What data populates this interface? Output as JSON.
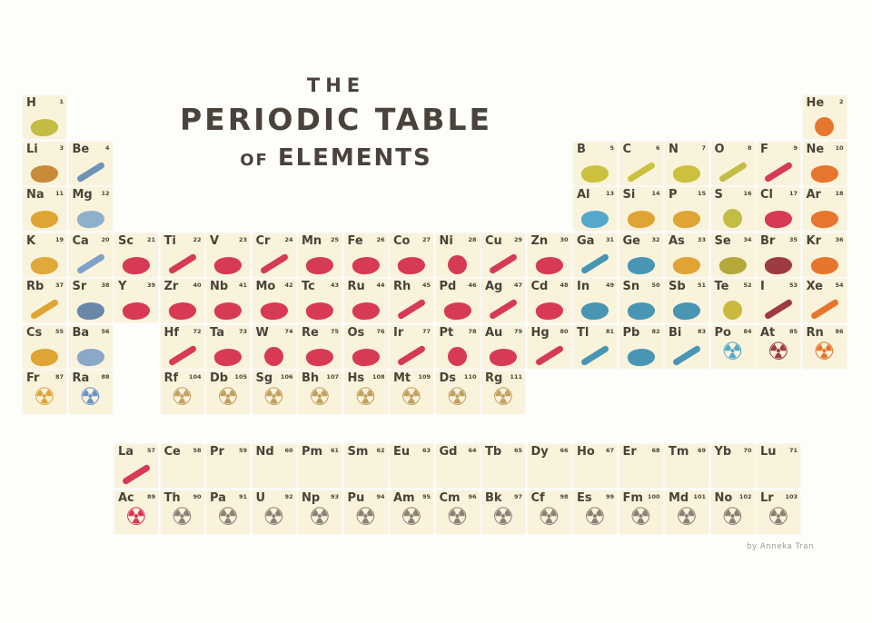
{
  "title": {
    "line1": "THE",
    "line2": "PERIODIC TABLE",
    "line3_of": "OF",
    "line3": "ELEMENTS"
  },
  "credit": "by Anneka Tran",
  "icons": {
    "radiation_glyph": "☢"
  },
  "palette": {
    "page_bg": "#fdfdf9",
    "cell_bg": "#faf3dc",
    "ink": "#4a433b",
    "yellow": "#c3bc45",
    "gold": "#dfa433",
    "slate_blue": "#6e93b5",
    "teal_blue": "#4896b4",
    "crimson": "#d63a55",
    "dark_red": "#9e3a42",
    "orange": "#e6762e",
    "tan": "#c2a05f",
    "gray": "#8d8076"
  },
  "elements": {
    "periods": [
      [
        {
          "symbol": "H",
          "number": 1,
          "col": 1,
          "icon": "blimp",
          "shape": "blob",
          "color": "#c3bc45"
        },
        {
          "symbol": "He",
          "number": 2,
          "col": 18,
          "icon": "balloon",
          "shape": "round",
          "color": "#e6762e"
        }
      ],
      [
        {
          "symbol": "Li",
          "number": 3,
          "col": 1,
          "icon": "radio",
          "shape": "blob",
          "color": "#c98b3a"
        },
        {
          "symbol": "Be",
          "number": 4,
          "col": 2,
          "icon": "satellite",
          "shape": "rod",
          "color": "#6e93b5"
        },
        {
          "symbol": "B",
          "number": 5,
          "col": 13,
          "icon": "measuring-cup",
          "shape": "blob",
          "color": "#ccc13f"
        },
        {
          "symbol": "C",
          "number": 6,
          "col": 14,
          "icon": "pencil",
          "shape": "rod",
          "color": "#ccc13f"
        },
        {
          "symbol": "N",
          "number": 7,
          "col": 15,
          "icon": "dynamite",
          "shape": "blob",
          "color": "#ccc13f"
        },
        {
          "symbol": "O",
          "number": 8,
          "col": 16,
          "icon": "oxygen-tank",
          "shape": "rod",
          "color": "#c3bc45"
        },
        {
          "symbol": "F",
          "number": 9,
          "col": 17,
          "icon": "toothbrush",
          "shape": "rod",
          "color": "#d63a55"
        },
        {
          "symbol": "Ne",
          "number": 10,
          "col": 18,
          "icon": "neon-sign",
          "shape": "blob",
          "color": "#e6762e"
        }
      ],
      [
        {
          "symbol": "Na",
          "number": 11,
          "col": 1,
          "icon": "salt-shaker",
          "shape": "blob",
          "color": "#dfa433"
        },
        {
          "symbol": "Mg",
          "number": 12,
          "col": 2,
          "icon": "leaves",
          "shape": "blob",
          "color": "#8fb0cc"
        },
        {
          "symbol": "Al",
          "number": 13,
          "col": 13,
          "icon": "soda-can",
          "shape": "blob",
          "color": "#54a8cc"
        },
        {
          "symbol": "Si",
          "number": 14,
          "col": 14,
          "icon": "microchip",
          "shape": "blob",
          "color": "#dfa433"
        },
        {
          "symbol": "P",
          "number": 15,
          "col": 15,
          "icon": "matchbox",
          "shape": "blob",
          "color": "#dfa433"
        },
        {
          "symbol": "S",
          "number": 16,
          "col": 16,
          "icon": "tire",
          "shape": "round",
          "color": "#c3bc45"
        },
        {
          "symbol": "Cl",
          "number": 17,
          "col": 17,
          "icon": "spray-bottle",
          "shape": "blob",
          "color": "#d63a55"
        },
        {
          "symbol": "Ar",
          "number": 18,
          "col": 18,
          "icon": "light-bulb",
          "shape": "blob",
          "color": "#e6762e"
        }
      ],
      [
        {
          "symbol": "K",
          "number": 19,
          "col": 1,
          "icon": "banana",
          "shape": "blob",
          "color": "#e0a93c"
        },
        {
          "symbol": "Ca",
          "number": 20,
          "col": 2,
          "icon": "bone",
          "shape": "rod",
          "color": "#7fa3c8"
        },
        {
          "symbol": "Sc",
          "number": 21,
          "col": 3,
          "icon": "bicycle",
          "shape": "blob",
          "color": "#d63a55"
        },
        {
          "symbol": "Ti",
          "number": 22,
          "col": 4,
          "icon": "golf-club",
          "shape": "rod",
          "color": "#d63a55"
        },
        {
          "symbol": "V",
          "number": 23,
          "col": 5,
          "icon": "gears",
          "shape": "blob",
          "color": "#d63a55"
        },
        {
          "symbol": "Cr",
          "number": 24,
          "col": 6,
          "icon": "cutlery",
          "shape": "rod",
          "color": "#d63a55"
        },
        {
          "symbol": "Mn",
          "number": 25,
          "col": 7,
          "icon": "steel-beam",
          "shape": "blob",
          "color": "#d63a55"
        },
        {
          "symbol": "Fe",
          "number": 26,
          "col": 8,
          "icon": "fence",
          "shape": "blob",
          "color": "#d63a55"
        },
        {
          "symbol": "Co",
          "number": 27,
          "col": 9,
          "icon": "magnet",
          "shape": "blob",
          "color": "#d63a55"
        },
        {
          "symbol": "Ni",
          "number": 28,
          "col": 10,
          "icon": "coin",
          "shape": "round",
          "color": "#d63a55"
        },
        {
          "symbol": "Cu",
          "number": 29,
          "col": 11,
          "icon": "wire",
          "shape": "rod",
          "color": "#d63a55"
        },
        {
          "symbol": "Zn",
          "number": 30,
          "col": 12,
          "icon": "boat",
          "shape": "blob",
          "color": "#d63a55"
        },
        {
          "symbol": "Ga",
          "number": 31,
          "col": 13,
          "icon": "thermometer",
          "shape": "rod",
          "color": "#4896b4"
        },
        {
          "symbol": "Ge",
          "number": 32,
          "col": 14,
          "icon": "microscope",
          "shape": "blob",
          "color": "#4896b4"
        },
        {
          "symbol": "As",
          "number": 33,
          "col": 15,
          "icon": "poison-bottle",
          "shape": "blob",
          "color": "#dfa433"
        },
        {
          "symbol": "Se",
          "number": 34,
          "col": 16,
          "icon": "jar",
          "shape": "blob",
          "color": "#b5a93c"
        },
        {
          "symbol": "Br",
          "number": 35,
          "col": 17,
          "icon": "camera",
          "shape": "blob",
          "color": "#9e3a42"
        },
        {
          "symbol": "Kr",
          "number": 36,
          "col": 18,
          "icon": "shovel",
          "shape": "blob",
          "color": "#e6762e"
        }
      ],
      [
        {
          "symbol": "Rb",
          "number": 37,
          "col": 1,
          "icon": "firework",
          "shape": "rod",
          "color": "#dfa433"
        },
        {
          "symbol": "Sr",
          "number": 38,
          "col": 2,
          "icon": "television",
          "shape": "blob",
          "color": "#6b87a8"
        },
        {
          "symbol": "Y",
          "number": 39,
          "col": 3,
          "icon": "gem",
          "shape": "blob",
          "color": "#d63a55"
        },
        {
          "symbol": "Zr",
          "number": 40,
          "col": 4,
          "icon": "tooth",
          "shape": "blob",
          "color": "#d63a55"
        },
        {
          "symbol": "Nb",
          "number": 41,
          "col": 5,
          "icon": "glasses",
          "shape": "blob",
          "color": "#d63a55"
        },
        {
          "symbol": "Mo",
          "number": 42,
          "col": 6,
          "icon": "seed-bag",
          "shape": "blob",
          "color": "#d63a55"
        },
        {
          "symbol": "Tc",
          "number": 43,
          "col": 7,
          "icon": "x-ray",
          "shape": "blob",
          "color": "#d63a55"
        },
        {
          "symbol": "Ru",
          "number": 44,
          "col": 8,
          "icon": "circuit-board",
          "shape": "blob",
          "color": "#d63a55"
        },
        {
          "symbol": "Rh",
          "number": 45,
          "col": 9,
          "icon": "fountain-pen",
          "shape": "rod",
          "color": "#d63a55"
        },
        {
          "symbol": "Pd",
          "number": 46,
          "col": 10,
          "icon": "usb-drive",
          "shape": "blob",
          "color": "#d63a55"
        },
        {
          "symbol": "Ag",
          "number": 47,
          "col": 11,
          "icon": "spoon",
          "shape": "rod",
          "color": "#d63a55"
        },
        {
          "symbol": "Cd",
          "number": 48,
          "col": 12,
          "icon": "battery",
          "shape": "blob",
          "color": "#d63a55"
        },
        {
          "symbol": "In",
          "number": 49,
          "col": 13,
          "icon": "laptop",
          "shape": "blob",
          "color": "#4896b4"
        },
        {
          "symbol": "Sn",
          "number": 50,
          "col": 14,
          "icon": "tin-can",
          "shape": "blob",
          "color": "#4896b4"
        },
        {
          "symbol": "Sb",
          "number": 51,
          "col": 15,
          "icon": "box",
          "shape": "blob",
          "color": "#4896b4"
        },
        {
          "symbol": "Te",
          "number": 52,
          "col": 16,
          "icon": "cd",
          "shape": "round",
          "color": "#c9b93e"
        },
        {
          "symbol": "I",
          "number": 53,
          "col": 17,
          "icon": "medicine-bottle",
          "shape": "rod",
          "color": "#9e3a42"
        },
        {
          "symbol": "Xe",
          "number": 54,
          "col": 18,
          "icon": "flashlight",
          "shape": "rod",
          "color": "#e6762e"
        }
      ],
      [
        {
          "symbol": "Cs",
          "number": 55,
          "col": 1,
          "icon": "digital-clock",
          "shape": "blob",
          "color": "#dfa433"
        },
        {
          "symbol": "Ba",
          "number": 56,
          "col": 2,
          "icon": "teapot",
          "shape": "blob",
          "color": "#8ca8c8"
        },
        {
          "symbol": "Hf",
          "number": 72,
          "col": 4,
          "icon": "rocket",
          "shape": "rod",
          "color": "#d63a55"
        },
        {
          "symbol": "Ta",
          "number": 73,
          "col": 5,
          "icon": "mobile-phone",
          "shape": "blob",
          "color": "#d63a55"
        },
        {
          "symbol": "W",
          "number": 74,
          "col": 6,
          "icon": "light-bulb",
          "shape": "round",
          "color": "#d63a55"
        },
        {
          "symbol": "Re",
          "number": 75,
          "col": 7,
          "icon": "fuel-can",
          "shape": "blob",
          "color": "#d63a55"
        },
        {
          "symbol": "Os",
          "number": 76,
          "col": 8,
          "icon": "banknote",
          "shape": "blob",
          "color": "#d63a55"
        },
        {
          "symbol": "Ir",
          "number": 77,
          "col": 9,
          "icon": "spark-plug",
          "shape": "rod",
          "color": "#d63a55"
        },
        {
          "symbol": "Pt",
          "number": 78,
          "col": 10,
          "icon": "ring",
          "shape": "round",
          "color": "#d63a55"
        },
        {
          "symbol": "Au",
          "number": 79,
          "col": 11,
          "icon": "crown",
          "shape": "blob",
          "color": "#d63a55"
        },
        {
          "symbol": "Hg",
          "number": 80,
          "col": 12,
          "icon": "thermometer",
          "shape": "rod",
          "color": "#d63a55"
        },
        {
          "symbol": "Tl",
          "number": 81,
          "col": 13,
          "icon": "ruler",
          "shape": "rod",
          "color": "#4896b4"
        },
        {
          "symbol": "Pb",
          "number": 82,
          "col": 14,
          "icon": "car-battery",
          "shape": "blob",
          "color": "#4896b4"
        },
        {
          "symbol": "Bi",
          "number": 83,
          "col": 15,
          "icon": "lipstick",
          "shape": "rod",
          "color": "#4896b4"
        },
        {
          "symbol": "Po",
          "number": 84,
          "col": 16,
          "icon": "radiation",
          "shape": "trefoil",
          "color": "#54a8cc"
        },
        {
          "symbol": "At",
          "number": 85,
          "col": 17,
          "icon": "radiation",
          "shape": "trefoil",
          "color": "#9e3a42"
        },
        {
          "symbol": "Rn",
          "number": 86,
          "col": 18,
          "icon": "radiation",
          "shape": "trefoil",
          "color": "#e6762e"
        }
      ],
      [
        {
          "symbol": "Fr",
          "number": 87,
          "col": 1,
          "icon": "radiation",
          "shape": "trefoil",
          "color": "#e0a53a"
        },
        {
          "symbol": "Ra",
          "number": 88,
          "col": 2,
          "icon": "radiation",
          "shape": "trefoil",
          "color": "#6b93c4"
        },
        {
          "symbol": "Rf",
          "number": 104,
          "col": 4,
          "icon": "radiation",
          "shape": "trefoil",
          "color": "#c2a05f"
        },
        {
          "symbol": "Db",
          "number": 105,
          "col": 5,
          "icon": "radiation",
          "shape": "trefoil",
          "color": "#c2a05f"
        },
        {
          "symbol": "Sg",
          "number": 106,
          "col": 6,
          "icon": "radiation",
          "shape": "trefoil",
          "color": "#c2a05f"
        },
        {
          "symbol": "Bh",
          "number": 107,
          "col": 7,
          "icon": "radiation",
          "shape": "trefoil",
          "color": "#c2a05f"
        },
        {
          "symbol": "Hs",
          "number": 108,
          "col": 8,
          "icon": "radiation",
          "shape": "trefoil",
          "color": "#c2a05f"
        },
        {
          "symbol": "Mt",
          "number": 109,
          "col": 9,
          "icon": "radiation",
          "shape": "trefoil",
          "color": "#c2a05f"
        },
        {
          "symbol": "Ds",
          "number": 110,
          "col": 10,
          "icon": "radiation",
          "shape": "trefoil",
          "color": "#c2a05f"
        },
        {
          "symbol": "Rg",
          "number": 111,
          "col": 11,
          "icon": "radiation",
          "shape": "trefoil",
          "color": "#c2a05f"
        }
      ]
    ],
    "lanthanides": [
      {
        "symbol": "La",
        "number": 57,
        "col": 3,
        "icon": "telescope",
        "shape": "rod",
        "color": "#d63a55"
      },
      {
        "symbol": "Ce",
        "number": 58,
        "col": 4,
        "icon": "none",
        "shape": "none",
        "color": ""
      },
      {
        "symbol": "Pr",
        "number": 59,
        "col": 5,
        "icon": "none",
        "shape": "none",
        "color": ""
      },
      {
        "symbol": "Nd",
        "number": 60,
        "col": 6,
        "icon": "none",
        "shape": "none",
        "color": ""
      },
      {
        "symbol": "Pm",
        "number": 61,
        "col": 7,
        "icon": "none",
        "shape": "none",
        "color": ""
      },
      {
        "symbol": "Sm",
        "number": 62,
        "col": 8,
        "icon": "none",
        "shape": "none",
        "color": ""
      },
      {
        "symbol": "Eu",
        "number": 63,
        "col": 9,
        "icon": "none",
        "shape": "none",
        "color": ""
      },
      {
        "symbol": "Gd",
        "number": 64,
        "col": 10,
        "icon": "none",
        "shape": "none",
        "color": ""
      },
      {
        "symbol": "Tb",
        "number": 65,
        "col": 11,
        "icon": "none",
        "shape": "none",
        "color": ""
      },
      {
        "symbol": "Dy",
        "number": 66,
        "col": 12,
        "icon": "none",
        "shape": "none",
        "color": ""
      },
      {
        "symbol": "Ho",
        "number": 67,
        "col": 13,
        "icon": "none",
        "shape": "none",
        "color": ""
      },
      {
        "symbol": "Er",
        "number": 68,
        "col": 14,
        "icon": "none",
        "shape": "none",
        "color": ""
      },
      {
        "symbol": "Tm",
        "number": 69,
        "col": 15,
        "icon": "none",
        "shape": "none",
        "color": ""
      },
      {
        "symbol": "Yb",
        "number": 70,
        "col": 16,
        "icon": "none",
        "shape": "none",
        "color": ""
      },
      {
        "symbol": "Lu",
        "number": 71,
        "col": 17,
        "icon": "none",
        "shape": "none",
        "color": ""
      }
    ],
    "actinides": [
      {
        "symbol": "Ac",
        "number": 89,
        "col": 3,
        "icon": "radiation",
        "shape": "trefoil",
        "color": "#d8365a"
      },
      {
        "symbol": "Th",
        "number": 90,
        "col": 4,
        "icon": "radiation",
        "shape": "trefoil",
        "color": "#8d8076"
      },
      {
        "symbol": "Pa",
        "number": 91,
        "col": 5,
        "icon": "radiation",
        "shape": "trefoil",
        "color": "#8d8076"
      },
      {
        "symbol": "U",
        "number": 92,
        "col": 6,
        "icon": "radiation",
        "shape": "trefoil",
        "color": "#8d8076"
      },
      {
        "symbol": "Np",
        "number": 93,
        "col": 7,
        "icon": "radiation",
        "shape": "trefoil",
        "color": "#8d8076"
      },
      {
        "symbol": "Pu",
        "number": 94,
        "col": 8,
        "icon": "radiation",
        "shape": "trefoil",
        "color": "#8d8076"
      },
      {
        "symbol": "Am",
        "number": 95,
        "col": 9,
        "icon": "radiation",
        "shape": "trefoil",
        "color": "#8d8076"
      },
      {
        "symbol": "Cm",
        "number": 96,
        "col": 10,
        "icon": "radiation",
        "shape": "trefoil",
        "color": "#8d8076"
      },
      {
        "symbol": "Bk",
        "number": 97,
        "col": 11,
        "icon": "radiation",
        "shape": "trefoil",
        "color": "#8d8076"
      },
      {
        "symbol": "Cf",
        "number": 98,
        "col": 12,
        "icon": "radiation",
        "shape": "trefoil",
        "color": "#8d8076"
      },
      {
        "symbol": "Es",
        "number": 99,
        "col": 13,
        "icon": "radiation",
        "shape": "trefoil",
        "color": "#8d8076"
      },
      {
        "symbol": "Fm",
        "number": 100,
        "col": 14,
        "icon": "radiation",
        "shape": "trefoil",
        "color": "#8d8076"
      },
      {
        "symbol": "Md",
        "number": 101,
        "col": 15,
        "icon": "radiation",
        "shape": "trefoil",
        "color": "#8d8076"
      },
      {
        "symbol": "No",
        "number": 102,
        "col": 16,
        "icon": "radiation",
        "shape": "trefoil",
        "color": "#8d8076"
      },
      {
        "symbol": "Lr",
        "number": 103,
        "col": 17,
        "icon": "radiation",
        "shape": "trefoil",
        "color": "#8d8076"
      }
    ]
  }
}
